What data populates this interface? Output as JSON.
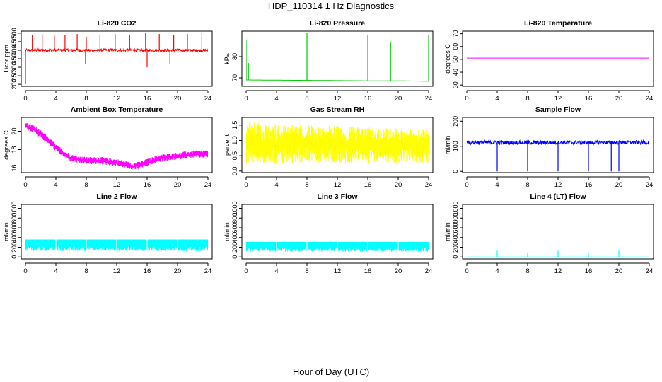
{
  "title": "HDP_110314  1 Hz Diagnostics",
  "xlabel": "Hour of Day (UTC)",
  "chart_data": [
    {
      "type": "line",
      "title": "Li-820 CO2",
      "ylabel": "Licor ppm",
      "color": "#ff0000",
      "xticks": [
        0,
        4,
        8,
        12,
        16,
        20,
        24
      ],
      "xlim": [
        0,
        24
      ],
      "yticks": [
        200,
        250,
        300,
        350,
        400,
        450,
        500
      ],
      "ylim": [
        188,
        512
      ],
      "series": [
        {
          "name": "CO2",
          "baseline": 400,
          "noise": 8,
          "x": [
            0,
            2,
            4,
            5,
            6,
            8,
            10,
            12,
            14,
            16,
            18,
            19,
            22,
            24
          ],
          "spikes": [
            [
              0,
              200
            ],
            [
              0.4,
              395
            ],
            [
              0.9,
              490
            ],
            [
              2.2,
              495
            ],
            [
              3.8,
              485
            ],
            [
              5.2,
              490
            ],
            [
              6.8,
              495
            ],
            [
              7.9,
              320
            ],
            [
              8,
              480
            ],
            [
              9.8,
              490
            ],
            [
              11.8,
              495
            ],
            [
              13.7,
              490
            ],
            [
              15.8,
              500
            ],
            [
              16,
              300
            ],
            [
              17.6,
              495
            ],
            [
              19,
              320
            ],
            [
              19.5,
              490
            ],
            [
              21.3,
              495
            ],
            [
              23.2,
              500
            ]
          ]
        }
      ]
    },
    {
      "type": "line",
      "title": "Li-820 Pressure",
      "ylabel": "kPa",
      "color": "#00cc00",
      "xticks": [
        0,
        4,
        8,
        12,
        16,
        20,
        24
      ],
      "xlim": [
        0,
        24
      ],
      "yticks": [
        70,
        80
      ],
      "ylim": [
        66,
        92
      ],
      "series": [
        {
          "name": "Pressure",
          "x": [
            0,
            4,
            8,
            12,
            16,
            20,
            24
          ],
          "y": [
            69,
            68.9,
            68.8,
            68.7,
            68.6,
            68.6,
            68.4
          ],
          "spikes": [
            [
              0,
              88
            ],
            [
              0.3,
              77
            ],
            [
              8,
              91
            ],
            [
              16,
              90
            ],
            [
              19,
              87
            ],
            [
              24,
              90
            ]
          ]
        }
      ]
    },
    {
      "type": "line",
      "title": "Li-820 Temperature",
      "ylabel": "degrees C",
      "color": "#ff00ff",
      "xticks": [
        0,
        4,
        8,
        12,
        16,
        20,
        24
      ],
      "xlim": [
        0,
        24
      ],
      "yticks": [
        30,
        40,
        50,
        60,
        70
      ],
      "ylim": [
        29,
        72
      ],
      "series": [
        {
          "name": "Temperature",
          "x": [
            0,
            24
          ],
          "y": [
            51,
            51
          ]
        }
      ]
    },
    {
      "type": "area",
      "title": "Ambient Box Temperature",
      "ylabel": "degrees C",
      "color": "#ff00ff",
      "xticks": [
        0,
        4,
        8,
        12,
        16,
        20,
        24
      ],
      "xlim": [
        0,
        24
      ],
      "yticks": [
        16,
        18,
        20
      ],
      "ylim": [
        15.5,
        21.5
      ],
      "series": [
        {
          "name": "Ambient",
          "x": [
            0,
            1,
            2,
            3,
            4,
            5,
            6,
            7,
            8,
            9,
            10,
            11,
            12,
            13,
            14,
            15,
            16,
            17,
            18,
            19,
            20,
            21,
            22,
            23,
            24
          ],
          "y": [
            20.6,
            20.3,
            19.7,
            19.0,
            18.2,
            17.6,
            17.1,
            16.9,
            16.8,
            16.8,
            16.8,
            16.7,
            16.6,
            16.4,
            16.2,
            16.3,
            16.6,
            16.9,
            17.1,
            17.2,
            17.3,
            17.4,
            17.5,
            17.5,
            17.5
          ],
          "noise": 0.4
        }
      ]
    },
    {
      "type": "area",
      "title": "Gas Stream RH",
      "ylabel": "percent",
      "color": "#ffff00",
      "xticks": [
        0,
        4,
        8,
        12,
        16,
        20,
        24
      ],
      "xlim": [
        0,
        24
      ],
      "yticks": [
        0.0,
        0.5,
        1.0,
        1.5
      ],
      "ylim": [
        -0.05,
        1.75
      ],
      "series": [
        {
          "name": "RH",
          "x": [
            0,
            24
          ],
          "low": [
            0.25,
            0.25
          ],
          "high": [
            1.6,
            1.35
          ]
        }
      ]
    },
    {
      "type": "line",
      "title": "Sample Flow",
      "ylabel": "ml/min",
      "color": "#0000ff",
      "xticks": [
        0,
        4,
        8,
        12,
        16,
        20,
        24
      ],
      "xlim": [
        0,
        24
      ],
      "yticks": [
        0,
        100,
        200
      ],
      "ylim": [
        -5,
        215
      ],
      "series": [
        {
          "name": "Sample",
          "baseline": 115,
          "noise": 8,
          "spikes": [
            [
              4,
              0
            ],
            [
              8,
              0
            ],
            [
              12,
              0
            ],
            [
              16,
              0
            ],
            [
              19,
              0
            ],
            [
              20,
              0
            ],
            [
              24,
              0
            ]
          ]
        }
      ]
    },
    {
      "type": "area",
      "title": "Line 2 Flow",
      "ylabel": "ml/min",
      "color": "#00ffff",
      "xticks": [
        0,
        4,
        8,
        12,
        16,
        20,
        24
      ],
      "xlim": [
        0,
        24
      ],
      "yticks": [
        0,
        200,
        400,
        600,
        800,
        1000
      ],
      "ylim": [
        -40,
        1080
      ],
      "series": [
        {
          "name": "Line2",
          "x": [
            0,
            24
          ],
          "low": [
            120,
            120
          ],
          "high": [
            360,
            360
          ]
        }
      ]
    },
    {
      "type": "area",
      "title": "Line 3 Flow",
      "ylabel": "ml/min",
      "color": "#00ffff",
      "xticks": [
        0,
        4,
        8,
        12,
        16,
        20,
        24
      ],
      "xlim": [
        0,
        24
      ],
      "yticks": [
        0,
        200,
        400,
        600,
        800,
        1000
      ],
      "ylim": [
        -40,
        1080
      ],
      "series": [
        {
          "name": "Line3",
          "x": [
            0,
            24
          ],
          "low": [
            110,
            110
          ],
          "high": [
            310,
            310
          ]
        }
      ]
    },
    {
      "type": "line",
      "title": "Line 4 (LT) Flow",
      "ylabel": "ml/min",
      "color": "#00ffff",
      "xticks": [
        0,
        4,
        8,
        12,
        16,
        20,
        24
      ],
      "xlim": [
        0,
        24
      ],
      "yticks": [
        0,
        200,
        400,
        600,
        800,
        1000
      ],
      "ylim": [
        -40,
        1080
      ],
      "series": [
        {
          "name": "Line4",
          "x": [
            0,
            24
          ],
          "y": [
            0,
            0
          ],
          "spikes": [
            [
              4,
              130
            ],
            [
              8,
              90
            ],
            [
              12,
              130
            ],
            [
              16,
              80
            ],
            [
              20,
              130
            ],
            [
              24,
              110
            ]
          ]
        }
      ]
    }
  ]
}
